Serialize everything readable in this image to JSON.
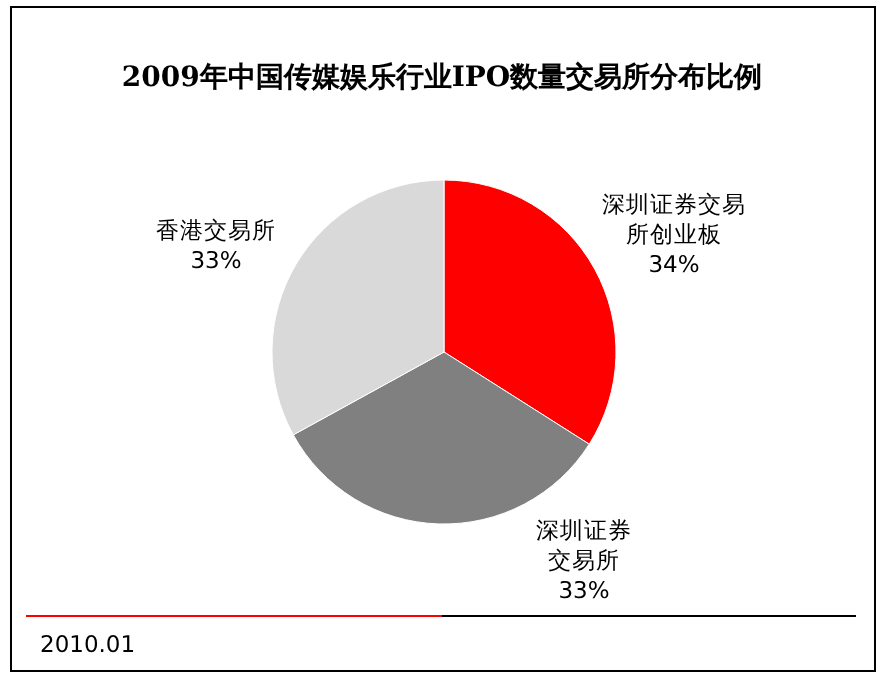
{
  "chart_data": {
    "type": "pie",
    "title": "2009年中国传媒娱乐行业IPO数量交易所分布比例",
    "categories": [
      "深圳证券交易所创业板",
      "深圳证券交易所",
      "香港交易所"
    ],
    "values": [
      34,
      33,
      33
    ],
    "value_labels": [
      "34%",
      "33%",
      "33%"
    ],
    "colors": [
      "#ff0000",
      "#808080",
      "#d9d9d9"
    ],
    "annotations": [
      "2010.01"
    ]
  }
}
